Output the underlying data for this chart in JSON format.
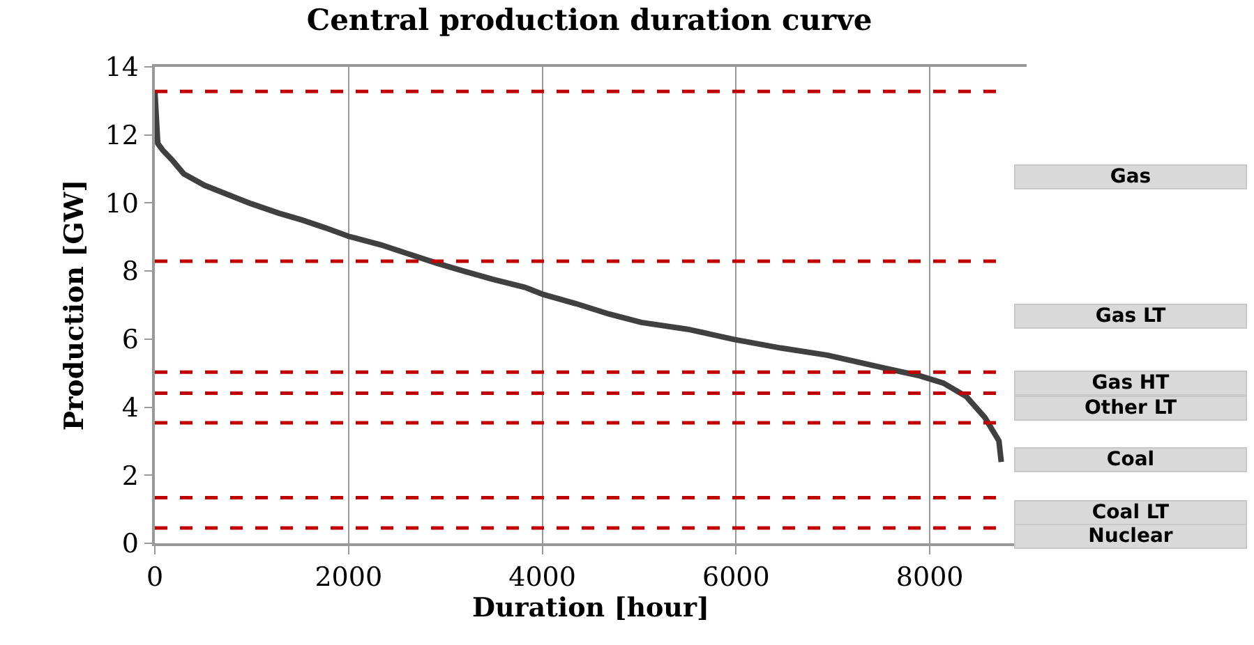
{
  "chart_data": {
    "type": "line",
    "title": "Central production duration curve",
    "xlabel": "Duration [hour]",
    "ylabel": "Production [GW]",
    "x": [
      0,
      30,
      82,
      177,
      297,
      513,
      752,
      993,
      1281,
      1521,
      1760,
      2000,
      2335,
      2623,
      2911,
      3199,
      3486,
      3822,
      4014,
      4350,
      4686,
      5022,
      5501,
      5981,
      6460,
      6940,
      7419,
      7899,
      8139,
      8378,
      8570,
      8714,
      8738
    ],
    "series": [
      {
        "color": "#404040",
        "values": [
          13.3,
          11.75,
          11.55,
          11.27,
          10.86,
          10.52,
          10.25,
          9.98,
          9.7,
          9.5,
          9.27,
          9.02,
          8.77,
          8.5,
          8.23,
          7.99,
          7.76,
          7.52,
          7.31,
          7.04,
          6.74,
          6.49,
          6.29,
          5.99,
          5.74,
          5.53,
          5.22,
          4.92,
          4.71,
          4.31,
          3.69,
          3.01,
          2.39
        ]
      }
    ],
    "xlim": [
      0,
      9000
    ],
    "xticks": [
      0,
      2000,
      4000,
      6000,
      8000
    ],
    "ylim": [
      0,
      14
    ],
    "yticks": [
      0,
      2,
      4,
      6,
      8,
      10,
      12,
      14
    ],
    "grid": "x",
    "marker": "none",
    "line_style": "solid",
    "ref_lines": [
      {
        "axis": "y",
        "value": 13.28,
        "color": "#c00000",
        "line_style": "dashed"
      },
      {
        "axis": "y",
        "value": 8.29,
        "color": "#c00000",
        "line_style": "dashed"
      },
      {
        "axis": "y",
        "value": 5.03,
        "color": "#c00000",
        "line_style": "dashed"
      },
      {
        "axis": "y",
        "value": 4.41,
        "color": "#c00000",
        "line_style": "dashed"
      },
      {
        "axis": "y",
        "value": 3.54,
        "color": "#c00000",
        "line_style": "dashed"
      },
      {
        "axis": "y",
        "value": 1.34,
        "color": "#c00000",
        "line_style": "dashed"
      },
      {
        "axis": "y",
        "value": 0.45,
        "color": "#c00000",
        "line_style": "dashed"
      }
    ],
    "annotations": [
      "Gas",
      "Gas LT",
      "Gas HT",
      "Other LT",
      "Coal",
      "Coal LT",
      "Nuclear"
    ]
  }
}
